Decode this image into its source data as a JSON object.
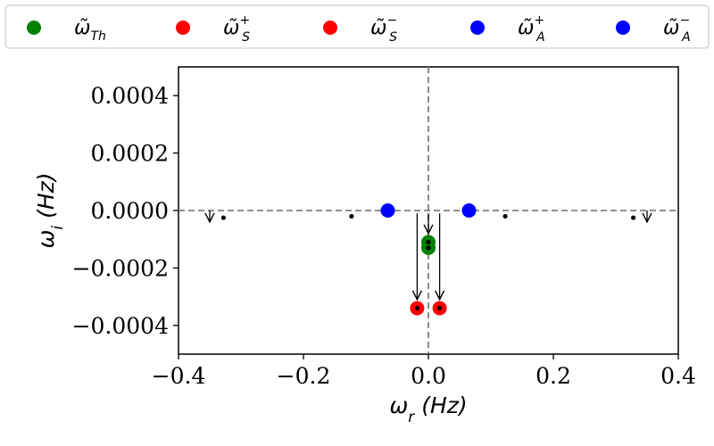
{
  "chart_data": {
    "type": "scatter",
    "xlabel": {
      "base": "ω",
      "sub": "r",
      "unit": " (Hz)"
    },
    "ylabel": {
      "base": "ω",
      "sub": "i",
      "unit": " (Hz)"
    },
    "xlim": [
      -0.4,
      0.4
    ],
    "ylim": [
      -0.0005,
      0.0005
    ],
    "x_ticks": [
      -0.4,
      -0.2,
      0.0,
      0.2,
      0.4
    ],
    "x_tick_labels": [
      "−0.4",
      "−0.2",
      "0.0",
      "0.2",
      "0.4"
    ],
    "y_ticks": [
      0.0004,
      0.0002,
      0.0,
      -0.0002,
      -0.0004
    ],
    "y_tick_labels": [
      "0.0004",
      "0.0002",
      "0.0000",
      "−0.0002",
      "−0.0004"
    ],
    "grid": false,
    "reference_lines": {
      "x": 0.0,
      "y": 0.0,
      "style": "dashed",
      "color": "#808080"
    },
    "legend": {
      "placement": "top",
      "entries": [
        {
          "base": "ω̃",
          "sub": "Th",
          "sup": "",
          "color": "#008000"
        },
        {
          "base": "ω̃",
          "sub": "S",
          "sup": "+",
          "color": "#ff0000"
        },
        {
          "base": "ω̃",
          "sub": "S",
          "sup": "−",
          "color": "#ff0000"
        },
        {
          "base": "ω̃",
          "sub": "A",
          "sup": "+",
          "color": "#0000ff"
        },
        {
          "base": "ω̃",
          "sub": "A",
          "sup": "−",
          "color": "#0000ff"
        }
      ]
    },
    "series": [
      {
        "color": "#008000",
        "points": [
          {
            "x": 0.0,
            "y": -0.00011
          },
          {
            "x": 0.0,
            "y": -0.00013
          }
        ]
      },
      {
        "color": "#ff0000",
        "points": [
          {
            "x": 0.018,
            "y": -0.00034
          }
        ]
      },
      {
        "color": "#ff0000",
        "points": [
          {
            "x": -0.018,
            "y": -0.00034
          }
        ]
      },
      {
        "color": "#0000ff",
        "points": [
          {
            "x": 0.065,
            "y": 0.0
          }
        ]
      },
      {
        "color": "#0000ff",
        "points": [
          {
            "x": -0.065,
            "y": 0.0
          }
        ]
      }
    ],
    "small_points": [
      {
        "x": -0.328,
        "y": -2.5e-05
      },
      {
        "x": -0.123,
        "y": -2e-05
      },
      {
        "x": -0.018,
        "y": -0.00034
      },
      {
        "x": 0.018,
        "y": -0.00034
      },
      {
        "x": 0.0,
        "y": -0.00011
      },
      {
        "x": 0.0,
        "y": -0.00013
      },
      {
        "x": 0.123,
        "y": -2e-05
      },
      {
        "x": 0.328,
        "y": -2.5e-05
      }
    ],
    "arrows": [
      {
        "x1": -0.35,
        "y1": 0.0,
        "x2": -0.35,
        "y2": -4e-05
      },
      {
        "x1": 0.35,
        "y1": 0.0,
        "x2": 0.35,
        "y2": -4e-05
      },
      {
        "x1": 0.0,
        "y1": -1e-05,
        "x2": 0.0,
        "y2": -8e-05
      },
      {
        "x1": -0.018,
        "y1": -1e-05,
        "x2": -0.018,
        "y2": -0.00031
      },
      {
        "x1": 0.018,
        "y1": -1e-05,
        "x2": 0.018,
        "y2": -0.00031
      }
    ]
  }
}
